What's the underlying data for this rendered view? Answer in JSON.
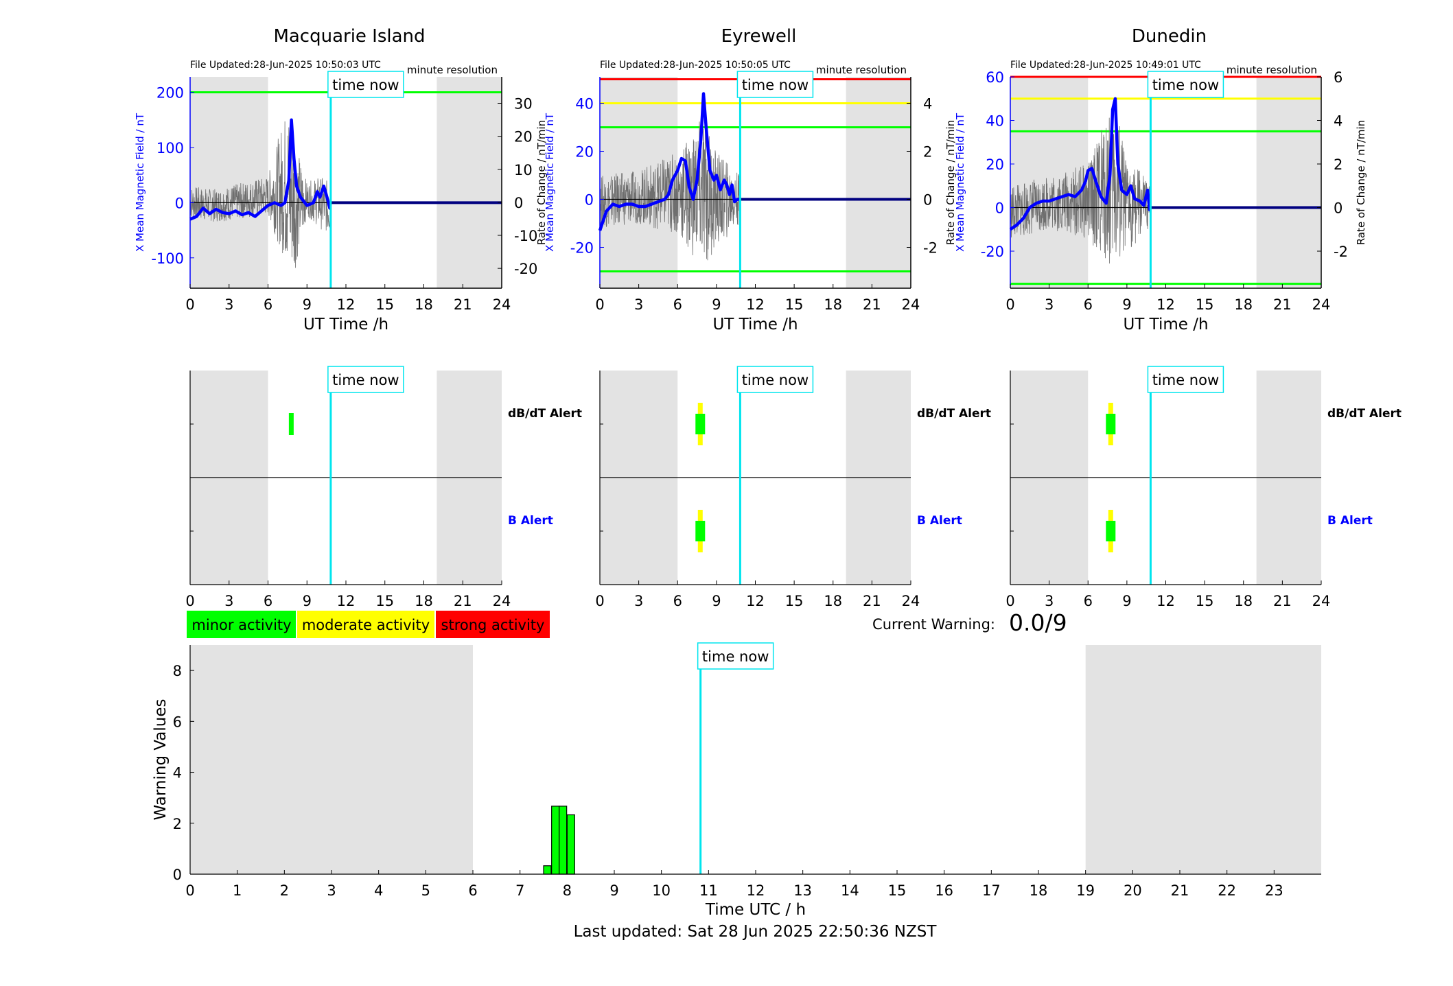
{
  "colors": {
    "gray_band": "#e3e3e3",
    "time_now": "#00e5ee",
    "blue": "#0000ff",
    "dark_blue": "#000080",
    "green": "#00ff00",
    "yellow": "#ffff00",
    "red": "#ff0000",
    "raw": "#6e6e6e"
  },
  "time_now_label": "time now",
  "time_now_hour": 10.83,
  "night_bands": [
    [
      0,
      6
    ],
    [
      19,
      24
    ]
  ],
  "xlabel_top": "UT Time /h",
  "resolution_label": "minute resolution",
  "ylabel_left": "X Mean Magnetic Field / nT",
  "ylabel_right": "Rate of Change / nT/min",
  "alert_labels": {
    "dbdt": "dB/dT Alert",
    "b": "B Alert"
  },
  "legend": [
    {
      "label": "minor activity",
      "color": "#00ff00"
    },
    {
      "label": "moderate activity",
      "color": "#ffff00"
    },
    {
      "label": "strong activity",
      "color": "#ff0000"
    }
  ],
  "current_warning": {
    "label": "Current Warning:",
    "value": "0.0/9"
  },
  "footer": "Last updated: Sat 28 Jun 2025 22:50:36 NZST",
  "chart_data": [
    {
      "type": "line",
      "title": "Macquarie Island",
      "file_updated": "File Updated:28-Jun-2025 10:50:03 UTC",
      "x_ticks": [
        0,
        3,
        6,
        9,
        12,
        15,
        18,
        21,
        24
      ],
      "ylim_left": [
        -155,
        228
      ],
      "yticks_left": [
        -100,
        0,
        100,
        200
      ],
      "ylim_right": [
        -26,
        38
      ],
      "yticks_right": [
        -20,
        -10,
        0,
        10,
        20,
        30
      ],
      "thresholds": [
        {
          "level": 200,
          "color": "green"
        }
      ],
      "mean_field": [
        [
          0,
          -30
        ],
        [
          0.5,
          -25
        ],
        [
          1,
          -10
        ],
        [
          1.5,
          -20
        ],
        [
          2,
          -12
        ],
        [
          2.5,
          -18
        ],
        [
          3,
          -20
        ],
        [
          3.5,
          -15
        ],
        [
          4,
          -22
        ],
        [
          4.5,
          -18
        ],
        [
          5,
          -25
        ],
        [
          5.5,
          -15
        ],
        [
          6,
          -5
        ],
        [
          6.5,
          0
        ],
        [
          7,
          -5
        ],
        [
          7.3,
          0
        ],
        [
          7.6,
          40
        ],
        [
          7.8,
          150
        ],
        [
          8,
          80
        ],
        [
          8.2,
          30
        ],
        [
          8.5,
          10
        ],
        [
          9,
          -5
        ],
        [
          9.5,
          0
        ],
        [
          9.8,
          20
        ],
        [
          10,
          10
        ],
        [
          10.3,
          30
        ],
        [
          10.6,
          5
        ],
        [
          10.75,
          -10
        ],
        [
          10.8,
          0
        ],
        [
          24,
          0
        ]
      ],
      "rate_of_change_range": [
        [
          0,
          -5,
          5
        ],
        [
          2,
          -6,
          4
        ],
        [
          4,
          -5,
          6
        ],
        [
          6,
          -4,
          8
        ],
        [
          7.5,
          -20,
          30
        ],
        [
          8,
          -22,
          20
        ],
        [
          9,
          -4,
          6
        ],
        [
          10,
          -8,
          8
        ],
        [
          10.8,
          -10,
          6
        ]
      ],
      "alerts": {
        "dbdt": [
          {
            "start": 7.5,
            "end": 7.8,
            "level": "minor"
          }
        ],
        "b": []
      }
    },
    {
      "type": "line",
      "title": "Eyrewell",
      "file_updated": "File Updated:28-Jun-2025 10:50:05 UTC",
      "x_ticks": [
        0,
        3,
        6,
        9,
        12,
        15,
        18,
        21,
        24
      ],
      "ylim_left": [
        -37,
        51
      ],
      "yticks_left": [
        -20,
        0,
        20,
        40
      ],
      "ylim_right": [
        -3.7,
        5.1
      ],
      "yticks_right": [
        -2,
        0,
        2,
        4
      ],
      "thresholds": [
        {
          "level": 50,
          "color": "red"
        },
        {
          "level": 40,
          "color": "yellow"
        },
        {
          "level": 30,
          "color": "green"
        },
        {
          "level": -30,
          "color": "green"
        }
      ],
      "mean_field": [
        [
          0,
          -13
        ],
        [
          0.5,
          -5
        ],
        [
          1,
          -2
        ],
        [
          1.5,
          -3
        ],
        [
          2,
          -2
        ],
        [
          2.5,
          -2
        ],
        [
          3,
          -3
        ],
        [
          3.5,
          -3
        ],
        [
          4,
          -2
        ],
        [
          4.5,
          -1
        ],
        [
          5,
          0
        ],
        [
          5.3,
          2
        ],
        [
          5.6,
          8
        ],
        [
          6,
          12
        ],
        [
          6.3,
          17
        ],
        [
          6.6,
          16
        ],
        [
          6.9,
          5
        ],
        [
          7.2,
          0
        ],
        [
          7.5,
          8
        ],
        [
          7.8,
          25
        ],
        [
          8,
          44
        ],
        [
          8.2,
          30
        ],
        [
          8.5,
          12
        ],
        [
          8.8,
          8
        ],
        [
          9,
          10
        ],
        [
          9.3,
          4
        ],
        [
          9.6,
          8
        ],
        [
          9.8,
          6
        ],
        [
          10,
          2
        ],
        [
          10.2,
          6
        ],
        [
          10.4,
          -1
        ],
        [
          10.6,
          0
        ],
        [
          10.8,
          0
        ],
        [
          24,
          0
        ]
      ],
      "rate_of_change_range": [
        [
          0,
          -1.2,
          1
        ],
        [
          3,
          -1,
          1.2
        ],
        [
          6,
          -1.5,
          2
        ],
        [
          8,
          -3,
          3.5
        ],
        [
          9,
          -2,
          2
        ],
        [
          10,
          -1.5,
          1.5
        ],
        [
          10.8,
          -1,
          1
        ]
      ],
      "alerts": {
        "dbdt": [
          {
            "start": 7.5,
            "end": 8.1,
            "level": "moderate",
            "core": [
              7.6,
              8.0
            ]
          }
        ],
        "b": [
          {
            "start": 7.6,
            "end": 8.1,
            "level": "moderate",
            "core": [
              7.7,
              8.0
            ]
          }
        ]
      }
    },
    {
      "type": "line",
      "title": "Dunedin",
      "file_updated": "File Updated:28-Jun-2025 10:49:01 UTC",
      "x_ticks": [
        0,
        3,
        6,
        9,
        12,
        15,
        18,
        21,
        24
      ],
      "ylim_left": [
        -37,
        60
      ],
      "yticks_left": [
        -20,
        0,
        20,
        40,
        60
      ],
      "ylim_right": [
        -3.7,
        6.0
      ],
      "yticks_right": [
        -2,
        0,
        2,
        4,
        6
      ],
      "thresholds": [
        {
          "level": 60,
          "color": "red"
        },
        {
          "level": 50,
          "color": "yellow"
        },
        {
          "level": 35,
          "color": "green"
        },
        {
          "level": -35,
          "color": "green"
        }
      ],
      "mean_field": [
        [
          0,
          -10
        ],
        [
          0.5,
          -8
        ],
        [
          1,
          -5
        ],
        [
          1.5,
          0
        ],
        [
          2,
          2
        ],
        [
          2.5,
          3
        ],
        [
          3,
          3
        ],
        [
          3.5,
          4
        ],
        [
          4,
          5
        ],
        [
          4.5,
          6
        ],
        [
          5,
          5
        ],
        [
          5.5,
          8
        ],
        [
          5.8,
          12
        ],
        [
          6,
          17
        ],
        [
          6.3,
          18
        ],
        [
          6.6,
          12
        ],
        [
          7,
          5
        ],
        [
          7.4,
          2
        ],
        [
          7.7,
          15
        ],
        [
          7.9,
          45
        ],
        [
          8.1,
          50
        ],
        [
          8.3,
          20
        ],
        [
          8.6,
          8
        ],
        [
          9,
          6
        ],
        [
          9.3,
          10
        ],
        [
          9.6,
          4
        ],
        [
          10,
          3
        ],
        [
          10.3,
          1
        ],
        [
          10.6,
          8
        ],
        [
          10.75,
          -1
        ],
        [
          10.8,
          0
        ],
        [
          24,
          0
        ]
      ],
      "rate_of_change_range": [
        [
          0,
          -1.5,
          1
        ],
        [
          3,
          -1,
          1.5
        ],
        [
          6,
          -1.5,
          2
        ],
        [
          8,
          -3,
          5.2
        ],
        [
          9,
          -2,
          2
        ],
        [
          10,
          -1.5,
          1.8
        ],
        [
          10.75,
          -1,
          1
        ]
      ],
      "alerts": {
        "dbdt": [
          {
            "start": 7.5,
            "end": 8.0,
            "level": "moderate",
            "core": [
              7.6,
              7.9
            ]
          }
        ],
        "b": [
          {
            "start": 7.6,
            "end": 8.0,
            "level": "moderate",
            "core": [
              7.7,
              7.9
            ]
          }
        ]
      }
    },
    {
      "type": "bar",
      "xlabel": "Time UTC / h",
      "ylabel": "Warning Values",
      "x_ticks": [
        0,
        1,
        2,
        3,
        4,
        5,
        6,
        7,
        8,
        9,
        10,
        11,
        12,
        13,
        14,
        15,
        16,
        17,
        18,
        19,
        20,
        21,
        22,
        23
      ],
      "xlim": [
        0,
        24
      ],
      "ylim": [
        0,
        9
      ],
      "yticks": [
        0,
        2,
        4,
        6,
        8
      ],
      "bars": [
        {
          "x": 7.5,
          "width": 0.16,
          "value": 0.33
        },
        {
          "x": 7.67,
          "width": 0.16,
          "value": 2.67
        },
        {
          "x": 7.83,
          "width": 0.16,
          "value": 2.67
        },
        {
          "x": 8.0,
          "width": 0.16,
          "value": 2.33
        }
      ],
      "bar_color": "green"
    }
  ]
}
